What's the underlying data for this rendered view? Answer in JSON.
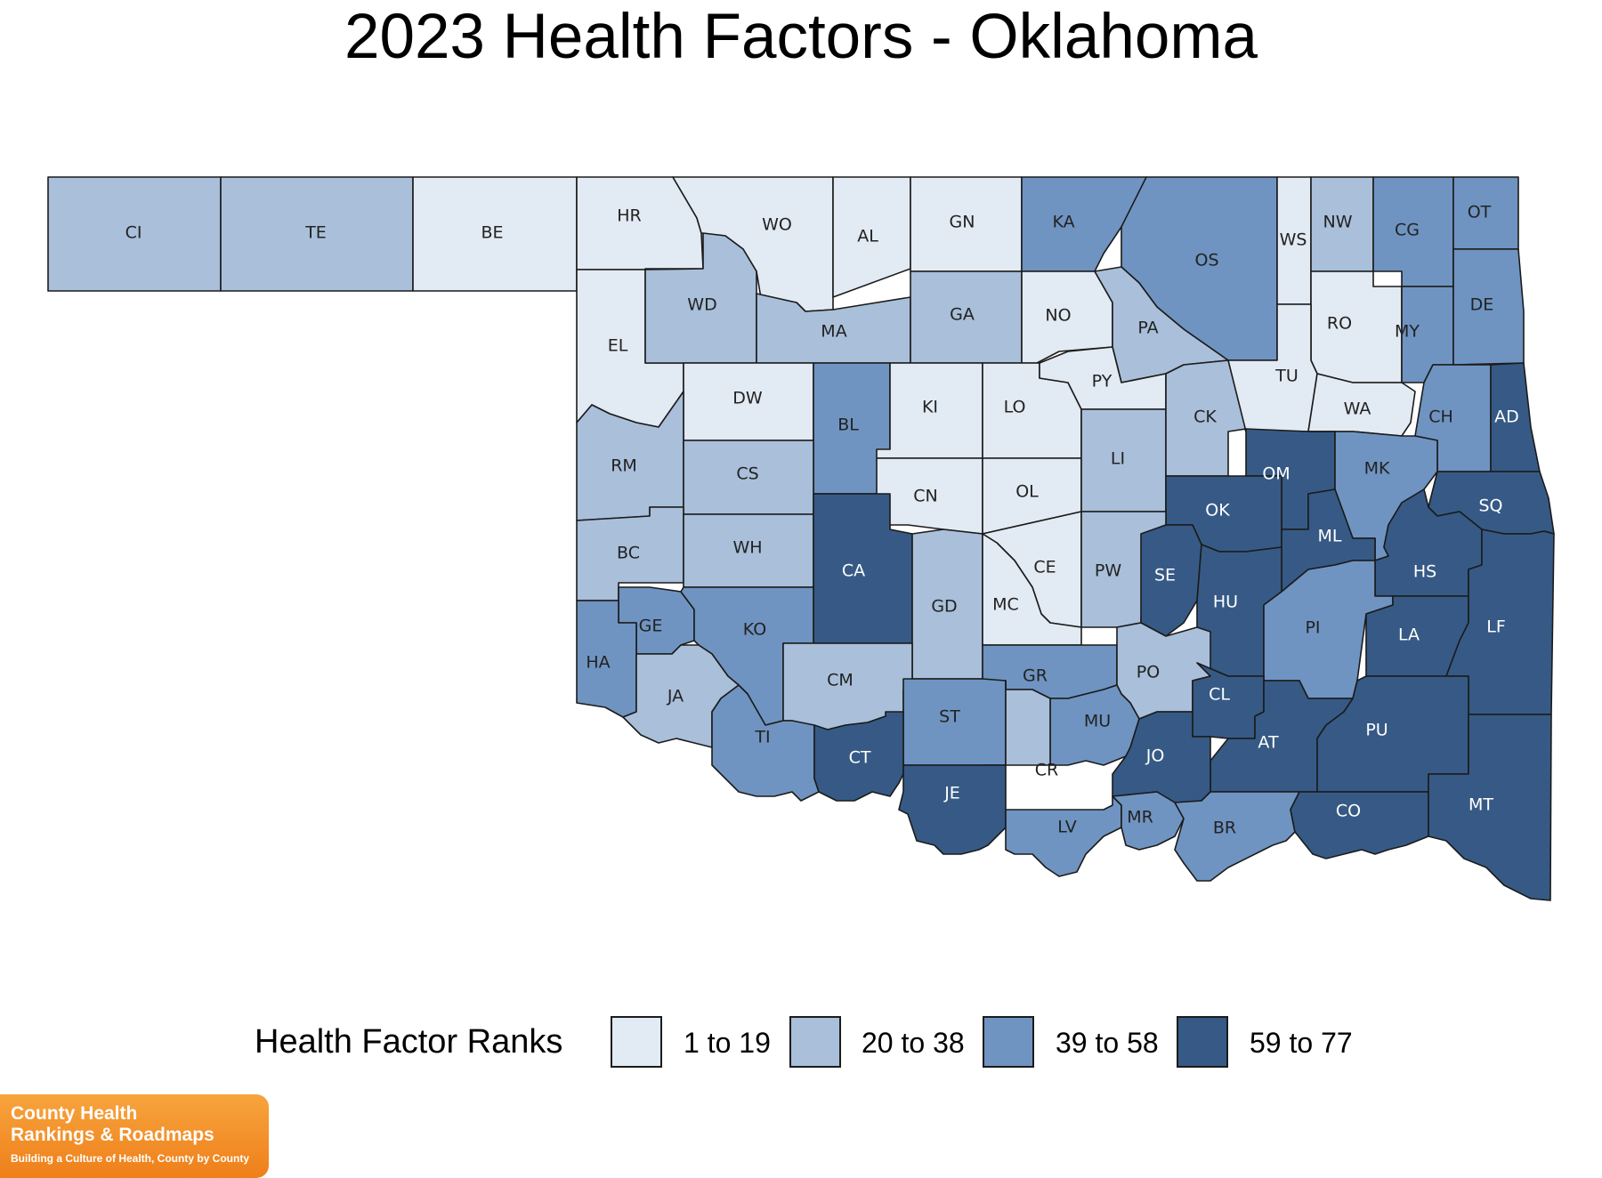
{
  "title": "2023 Health Factors - Oklahoma",
  "legend": {
    "title": "Health Factor Ranks",
    "bins": [
      {
        "label": "1 to 19",
        "color": "#e2eaf3"
      },
      {
        "label": "20 to 38",
        "color": "#a9bfda"
      },
      {
        "label": "39 to 58",
        "color": "#6f94c1"
      },
      {
        "label": "59 to 77",
        "color": "#365a85"
      }
    ]
  },
  "logo": {
    "line1": "County Health",
    "line2": "Rankings & Roadmaps",
    "tagline": "Building a Culture of Health, County by County"
  },
  "counties": [
    {
      "abbr": "CI",
      "bin": 1
    },
    {
      "abbr": "TE",
      "bin": 1
    },
    {
      "abbr": "BE",
      "bin": 0
    },
    {
      "abbr": "HR",
      "bin": 0
    },
    {
      "abbr": "WO",
      "bin": 0
    },
    {
      "abbr": "AL",
      "bin": 0
    },
    {
      "abbr": "GN",
      "bin": 0
    },
    {
      "abbr": "KA",
      "bin": 2
    },
    {
      "abbr": "OS",
      "bin": 2
    },
    {
      "abbr": "WS",
      "bin": 0
    },
    {
      "abbr": "NW",
      "bin": 1
    },
    {
      "abbr": "CG",
      "bin": 2
    },
    {
      "abbr": "OT",
      "bin": 2
    },
    {
      "abbr": "EL",
      "bin": 0
    },
    {
      "abbr": "WD",
      "bin": 1
    },
    {
      "abbr": "MA",
      "bin": 1
    },
    {
      "abbr": "GA",
      "bin": 1
    },
    {
      "abbr": "NO",
      "bin": 0
    },
    {
      "abbr": "PA",
      "bin": 1
    },
    {
      "abbr": "RO",
      "bin": 0
    },
    {
      "abbr": "MY",
      "bin": 2
    },
    {
      "abbr": "DE",
      "bin": 2
    },
    {
      "abbr": "DW",
      "bin": 0
    },
    {
      "abbr": "BL",
      "bin": 2
    },
    {
      "abbr": "KI",
      "bin": 0
    },
    {
      "abbr": "LO",
      "bin": 0
    },
    {
      "abbr": "PY",
      "bin": 0
    },
    {
      "abbr": "TU",
      "bin": 0
    },
    {
      "abbr": "WA",
      "bin": 0
    },
    {
      "abbr": "CH",
      "bin": 2
    },
    {
      "abbr": "AD",
      "bin": 3
    },
    {
      "abbr": "RM",
      "bin": 1
    },
    {
      "abbr": "CS",
      "bin": 1
    },
    {
      "abbr": "CN",
      "bin": 0
    },
    {
      "abbr": "OL",
      "bin": 0
    },
    {
      "abbr": "LI",
      "bin": 1
    },
    {
      "abbr": "CK",
      "bin": 1
    },
    {
      "abbr": "OM",
      "bin": 3
    },
    {
      "abbr": "MK",
      "bin": 2
    },
    {
      "abbr": "SQ",
      "bin": 3
    },
    {
      "abbr": "BC",
      "bin": 1
    },
    {
      "abbr": "WH",
      "bin": 1
    },
    {
      "abbr": "CA",
      "bin": 3
    },
    {
      "abbr": "OK",
      "bin": 3
    },
    {
      "abbr": "ML",
      "bin": 3
    },
    {
      "abbr": "CE",
      "bin": 0
    },
    {
      "abbr": "PW",
      "bin": 1
    },
    {
      "abbr": "SE",
      "bin": 3
    },
    {
      "abbr": "HU",
      "bin": 3
    },
    {
      "abbr": "HS",
      "bin": 3
    },
    {
      "abbr": "GD",
      "bin": 1
    },
    {
      "abbr": "MC",
      "bin": 0
    },
    {
      "abbr": "GE",
      "bin": 2
    },
    {
      "abbr": "KO",
      "bin": 2
    },
    {
      "abbr": "PI",
      "bin": 2
    },
    {
      "abbr": "LA",
      "bin": 3
    },
    {
      "abbr": "LF",
      "bin": 3
    },
    {
      "abbr": "HA",
      "bin": 2
    },
    {
      "abbr": "JA",
      "bin": 1
    },
    {
      "abbr": "CM",
      "bin": 1
    },
    {
      "abbr": "GR",
      "bin": 2
    },
    {
      "abbr": "PO",
      "bin": 1
    },
    {
      "abbr": "CL",
      "bin": 3
    },
    {
      "abbr": "ST",
      "bin": 2
    },
    {
      "abbr": "MU",
      "bin": 2
    },
    {
      "abbr": "AT",
      "bin": 3
    },
    {
      "abbr": "PU",
      "bin": 3
    },
    {
      "abbr": "TI",
      "bin": 2
    },
    {
      "abbr": "CT",
      "bin": 3
    },
    {
      "abbr": "JO",
      "bin": 3
    },
    {
      "abbr": "CR",
      "bin": 1
    },
    {
      "abbr": "JE",
      "bin": 3
    },
    {
      "abbr": "LV",
      "bin": 2
    },
    {
      "abbr": "MR",
      "bin": 2
    },
    {
      "abbr": "BR",
      "bin": 2
    },
    {
      "abbr": "CO",
      "bin": 3
    },
    {
      "abbr": "MT",
      "bin": 3
    }
  ]
}
